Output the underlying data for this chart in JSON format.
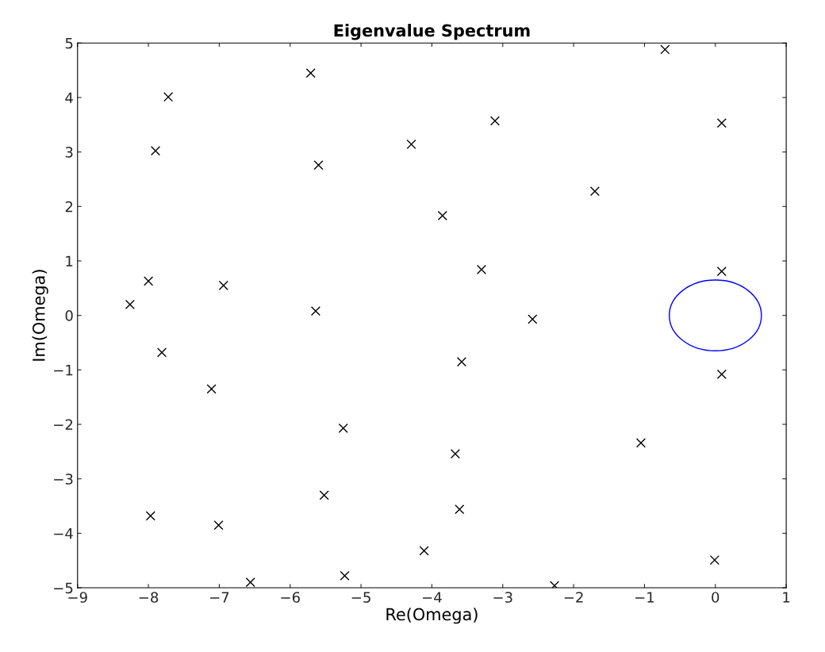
{
  "chart_data": {
    "type": "scatter",
    "title": "Eigenvalue Spectrum",
    "xlabel": "Re(Omega)",
    "ylabel": "Im(Omega)",
    "xlim": [
      -9,
      1
    ],
    "xticks": [
      -9,
      -8,
      -7,
      -6,
      -5,
      -4,
      -3,
      -2,
      -1,
      0,
      1
    ],
    "ylim": [
      -5,
      5
    ],
    "yticks": [
      -5,
      -4,
      -3,
      -2,
      -1,
      0,
      1,
      2,
      3,
      4,
      5
    ],
    "grid": false,
    "series": [
      {
        "color": "#000000",
        "marker": "cross",
        "x": [
          -0.71,
          -5.71,
          -7.72,
          -3.11,
          0.09,
          -7.9,
          -4.29,
          -5.6,
          -1.7,
          -3.85,
          -3.3,
          0.09,
          -8.0,
          -6.94,
          -8.26,
          -5.64,
          -2.58,
          -7.81,
          -3.58,
          0.09,
          -7.11,
          -5.25,
          -1.05,
          -3.67,
          -5.52,
          -3.61,
          -7.97,
          -7.01,
          -4.11,
          -0.01,
          -5.23,
          -6.56,
          -2.27
        ],
        "values": [
          4.88,
          4.45,
          4.01,
          3.57,
          3.53,
          3.02,
          3.14,
          2.76,
          2.28,
          1.83,
          0.84,
          0.81,
          0.63,
          0.55,
          0.2,
          0.08,
          -0.07,
          -0.68,
          -0.85,
          -1.08,
          -1.35,
          -2.07,
          -2.34,
          -2.54,
          -3.3,
          -3.56,
          -3.68,
          -3.85,
          -4.32,
          -4.49,
          -4.78,
          -4.9,
          -4.96
        ]
      }
    ]
  }
}
